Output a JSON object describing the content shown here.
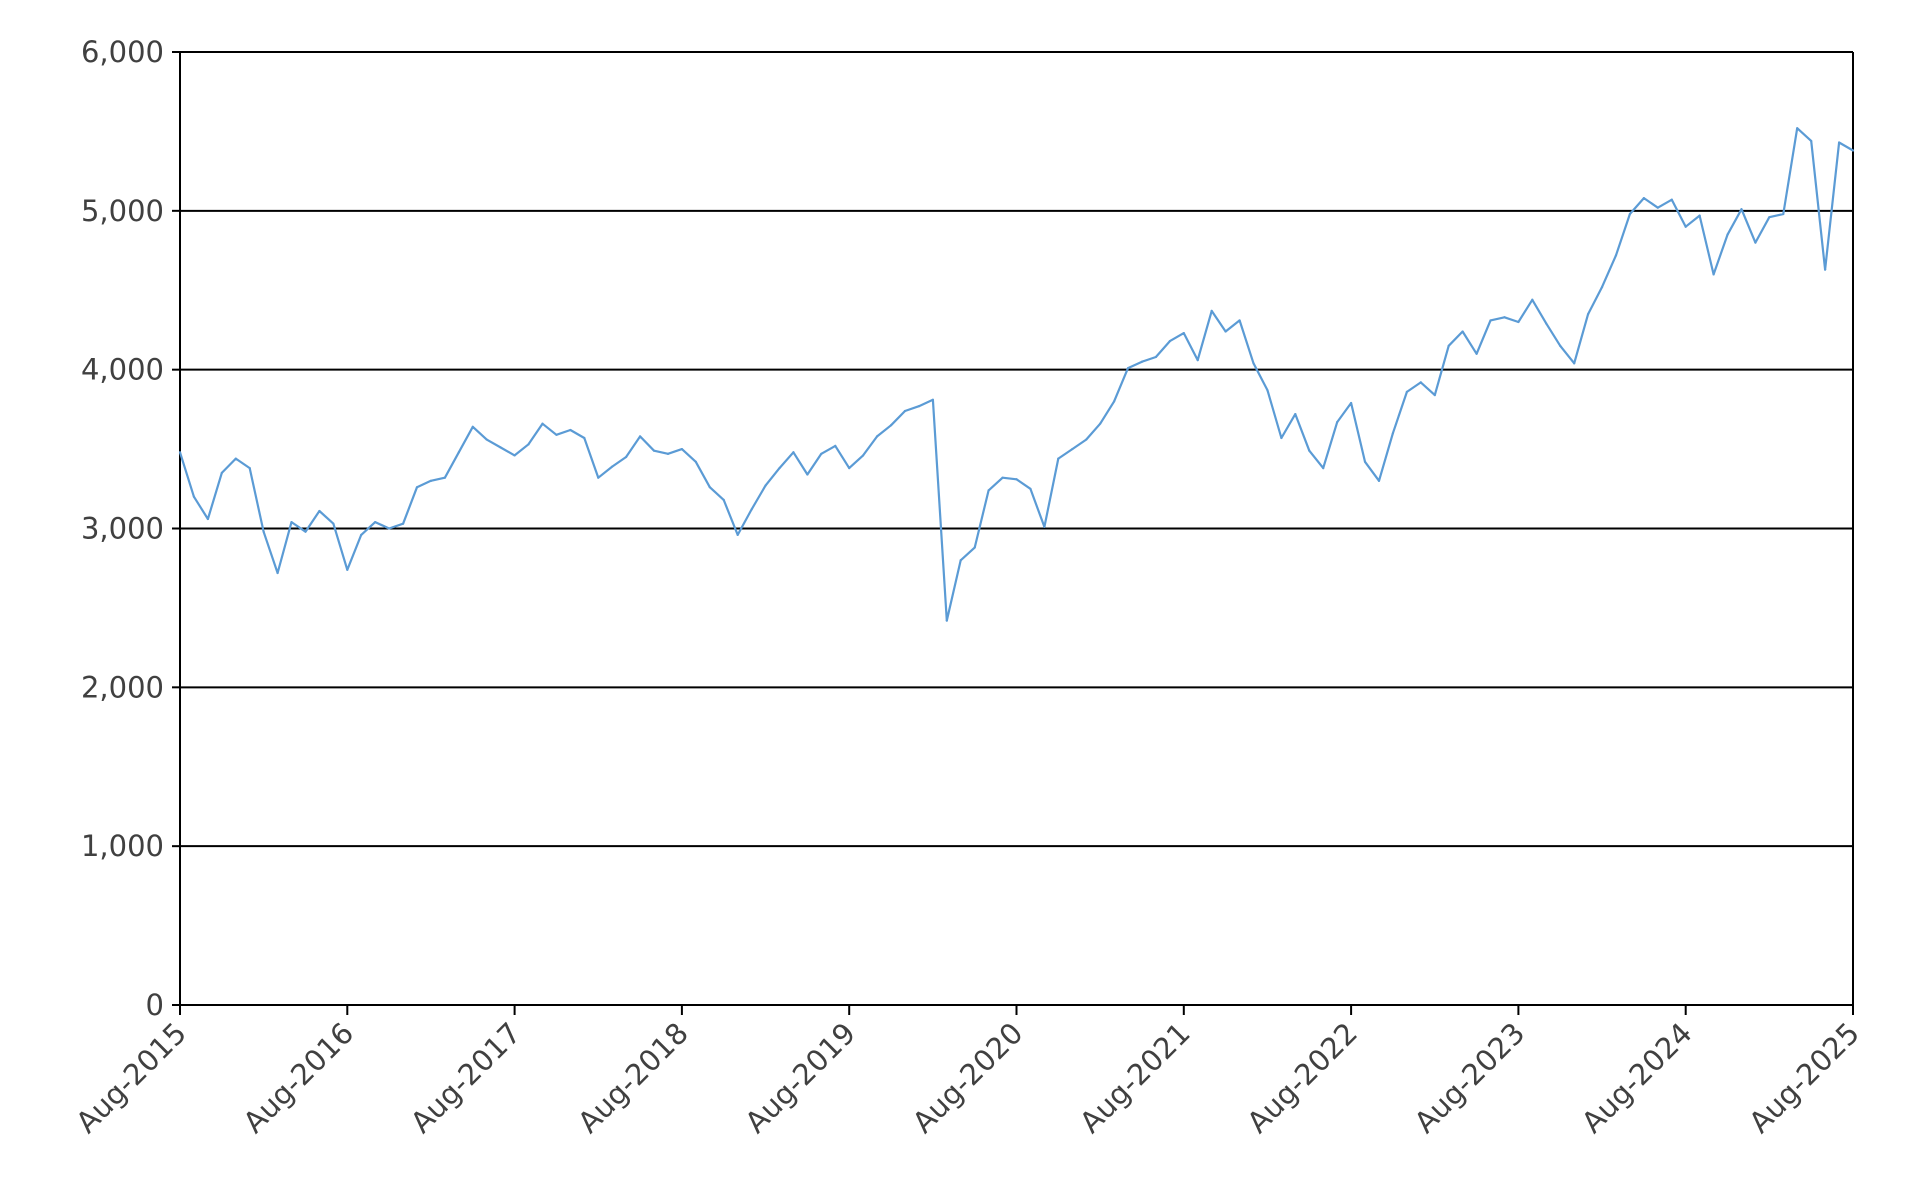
{
  "chart_data": {
    "type": "line",
    "title": "",
    "xlabel": "",
    "ylabel": "",
    "ylim": [
      0,
      6000
    ],
    "y_ticks": [
      0,
      1000,
      2000,
      3000,
      4000,
      5000,
      6000
    ],
    "y_tick_labels": [
      "0",
      "1,000",
      "2,000",
      "3,000",
      "4,000",
      "5,000",
      "6,000"
    ],
    "x_range": [
      "2015-08",
      "2025-08"
    ],
    "x_tick_labels": [
      "Aug-2015",
      "Aug-2016",
      "Aug-2017",
      "Aug-2018",
      "Aug-2019",
      "Aug-2020",
      "Aug-2021",
      "Aug-2022",
      "Aug-2023",
      "Aug-2024",
      "Aug-2025"
    ],
    "grid": "horizontal",
    "legend": "none",
    "series": [
      {
        "color": "#5b9bd5",
        "points": [
          [
            "2015-08",
            3480
          ],
          [
            "2015-09",
            3200
          ],
          [
            "2015-10",
            3060
          ],
          [
            "2015-11",
            3350
          ],
          [
            "2015-12",
            3440
          ],
          [
            "2016-01",
            3380
          ],
          [
            "2016-02",
            2980
          ],
          [
            "2016-03",
            2720
          ],
          [
            "2016-04",
            3040
          ],
          [
            "2016-05",
            2980
          ],
          [
            "2016-06",
            3110
          ],
          [
            "2016-07",
            3030
          ],
          [
            "2016-08",
            2740
          ],
          [
            "2016-09",
            2960
          ],
          [
            "2016-10",
            3040
          ],
          [
            "2016-11",
            3000
          ],
          [
            "2016-12",
            3030
          ],
          [
            "2017-01",
            3260
          ],
          [
            "2017-02",
            3300
          ],
          [
            "2017-03",
            3320
          ],
          [
            "2017-04",
            3480
          ],
          [
            "2017-05",
            3640
          ],
          [
            "2017-06",
            3560
          ],
          [
            "2017-07",
            3510
          ],
          [
            "2017-08",
            3460
          ],
          [
            "2017-09",
            3530
          ],
          [
            "2017-10",
            3660
          ],
          [
            "2017-11",
            3590
          ],
          [
            "2017-12",
            3620
          ],
          [
            "2018-01",
            3570
          ],
          [
            "2018-02",
            3320
          ],
          [
            "2018-03",
            3390
          ],
          [
            "2018-04",
            3450
          ],
          [
            "2018-05",
            3580
          ],
          [
            "2018-06",
            3490
          ],
          [
            "2018-07",
            3470
          ],
          [
            "2018-08",
            3500
          ],
          [
            "2018-09",
            3420
          ],
          [
            "2018-10",
            3260
          ],
          [
            "2018-11",
            3180
          ],
          [
            "2018-12",
            2960
          ],
          [
            "2019-01",
            3120
          ],
          [
            "2019-02",
            3270
          ],
          [
            "2019-03",
            3380
          ],
          [
            "2019-04",
            3480
          ],
          [
            "2019-05",
            3340
          ],
          [
            "2019-06",
            3470
          ],
          [
            "2019-07",
            3520
          ],
          [
            "2019-08",
            3380
          ],
          [
            "2019-09",
            3460
          ],
          [
            "2019-10",
            3580
          ],
          [
            "2019-11",
            3650
          ],
          [
            "2019-12",
            3740
          ],
          [
            "2020-01",
            3770
          ],
          [
            "2020-02",
            3810
          ],
          [
            "2020-03",
            2420
          ],
          [
            "2020-04",
            2800
          ],
          [
            "2020-05",
            2880
          ],
          [
            "2020-06",
            3240
          ],
          [
            "2020-07",
            3320
          ],
          [
            "2020-08",
            3310
          ],
          [
            "2020-09",
            3250
          ],
          [
            "2020-10",
            3010
          ],
          [
            "2020-11",
            3440
          ],
          [
            "2020-12",
            3500
          ],
          [
            "2021-01",
            3560
          ],
          [
            "2021-02",
            3660
          ],
          [
            "2021-03",
            3800
          ],
          [
            "2021-04",
            4010
          ],
          [
            "2021-05",
            4050
          ],
          [
            "2021-06",
            4080
          ],
          [
            "2021-07",
            4180
          ],
          [
            "2021-08",
            4230
          ],
          [
            "2021-09",
            4060
          ],
          [
            "2021-10",
            4370
          ],
          [
            "2021-11",
            4240
          ],
          [
            "2021-12",
            4310
          ],
          [
            "2022-01",
            4040
          ],
          [
            "2022-02",
            3870
          ],
          [
            "2022-03",
            3570
          ],
          [
            "2022-04",
            3720
          ],
          [
            "2022-05",
            3490
          ],
          [
            "2022-06",
            3380
          ],
          [
            "2022-07",
            3670
          ],
          [
            "2022-08",
            3790
          ],
          [
            "2022-09",
            3420
          ],
          [
            "2022-10",
            3300
          ],
          [
            "2022-11",
            3600
          ],
          [
            "2022-12",
            3860
          ],
          [
            "2023-01",
            3920
          ],
          [
            "2023-02",
            3840
          ],
          [
            "2023-03",
            4150
          ],
          [
            "2023-04",
            4240
          ],
          [
            "2023-05",
            4100
          ],
          [
            "2023-06",
            4310
          ],
          [
            "2023-07",
            4330
          ],
          [
            "2023-08",
            4300
          ],
          [
            "2023-09",
            4440
          ],
          [
            "2023-10",
            4290
          ],
          [
            "2023-11",
            4150
          ],
          [
            "2023-12",
            4040
          ],
          [
            "2024-01",
            4350
          ],
          [
            "2024-02",
            4520
          ],
          [
            "2024-03",
            4720
          ],
          [
            "2024-04",
            4980
          ],
          [
            "2024-05",
            5080
          ],
          [
            "2024-06",
            5020
          ],
          [
            "2024-07",
            5070
          ],
          [
            "2024-08",
            4900
          ],
          [
            "2024-09",
            4970
          ],
          [
            "2024-10",
            4600
          ],
          [
            "2024-11",
            4850
          ],
          [
            "2024-12",
            5010
          ],
          [
            "2025-01",
            4800
          ],
          [
            "2025-02",
            4960
          ],
          [
            "2025-03",
            4980
          ],
          [
            "2025-04",
            5520
          ],
          [
            "2025-05",
            5440
          ],
          [
            "2025-06",
            4630
          ],
          [
            "2025-07",
            5430
          ],
          [
            "2025-08",
            5380
          ]
        ]
      }
    ]
  }
}
